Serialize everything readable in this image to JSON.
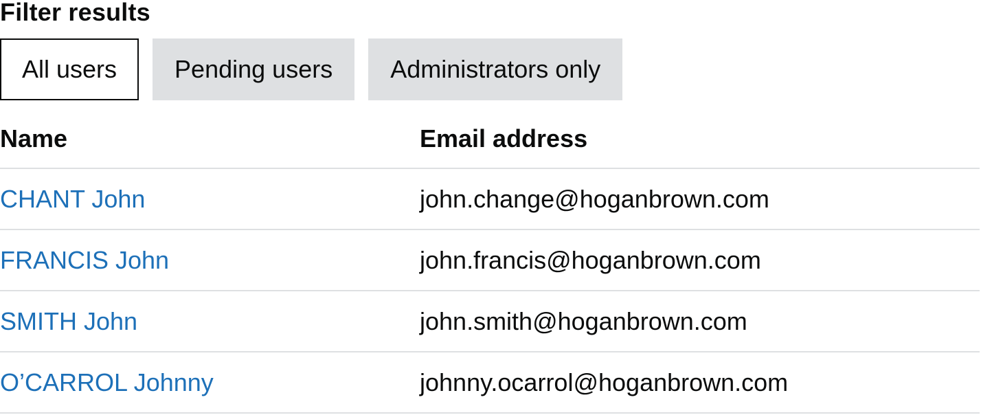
{
  "heading": "Filter results",
  "filters": [
    {
      "label": "All users",
      "active": true
    },
    {
      "label": "Pending users",
      "active": false
    },
    {
      "label": "Administrators only",
      "active": false
    }
  ],
  "table": {
    "headers": {
      "name": "Name",
      "email": "Email address"
    },
    "rows": [
      {
        "name": "CHANT John",
        "email": "john.change@hoganbrown.com"
      },
      {
        "name": "FRANCIS John",
        "email": "john.francis@hoganbrown.com"
      },
      {
        "name": "SMITH John",
        "email": "john.smith@hoganbrown.com"
      },
      {
        "name": "O’CARROL Johnny",
        "email": "johnny.ocarrol@hoganbrown.com"
      }
    ]
  },
  "colors": {
    "link": "#1d70b8",
    "text": "#0b0c0c",
    "button_bg": "#dee0e2",
    "divider": "#dee0e2"
  }
}
